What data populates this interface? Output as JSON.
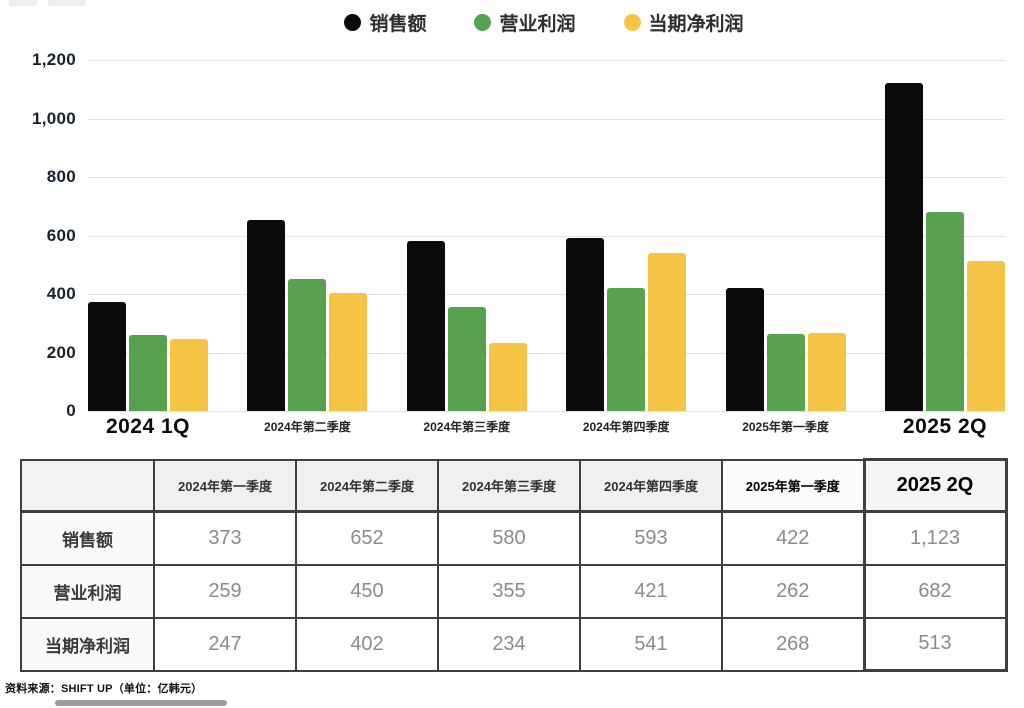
{
  "chart_data": {
    "type": "bar",
    "title": "",
    "xlabel": "",
    "ylabel": "",
    "categories": [
      "2024 1Q",
      "2024年第二季度",
      "2024年第三季度",
      "2024年第四季度",
      "2025年第一季度",
      "2025 2Q"
    ],
    "series": [
      {
        "name": "销售额",
        "color": "#0b0b0b",
        "values": [
          373,
          652,
          580,
          593,
          422,
          1123
        ]
      },
      {
        "name": "营业利润",
        "color": "#58a14e",
        "values": [
          259,
          450,
          355,
          421,
          262,
          682
        ]
      },
      {
        "name": "当期净利润",
        "color": "#f6c445",
        "values": [
          247,
          402,
          234,
          541,
          268,
          513
        ]
      }
    ],
    "ylim": [
      0,
      1200
    ],
    "yticks": [
      "1,200",
      "1,000",
      "800",
      "600",
      "400",
      "200",
      "0"
    ],
    "grid": true,
    "legend_position": "top"
  },
  "table": {
    "col_headers": [
      "",
      "2024年第一季度",
      "2024年第二季度",
      "2024年第三季度",
      "2024年第四季度",
      "2025年第一季度",
      "2025 2Q"
    ],
    "rows": [
      {
        "label": "销售额",
        "values": [
          "373",
          "652",
          "580",
          "593",
          "422",
          "1,123"
        ]
      },
      {
        "label": "营业利润",
        "values": [
          "259",
          "450",
          "355",
          "421",
          "262",
          "682"
        ]
      },
      {
        "label": "当期净利润",
        "values": [
          "247",
          "402",
          "234",
          "541",
          "268",
          "513"
        ]
      }
    ]
  },
  "footer": {
    "source_note": "资料来源：SHIFT UP（单位：亿韩元）"
  }
}
